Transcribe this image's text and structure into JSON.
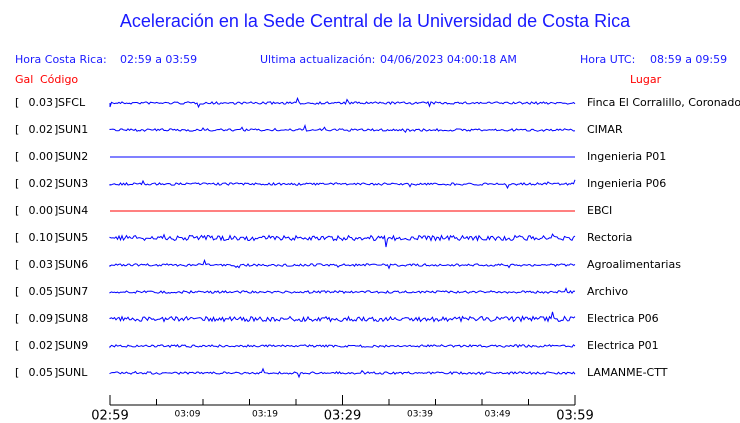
{
  "header": {
    "title": "Aceleración en la Sede Central de la Universidad de Costa Rica",
    "local_label": "Hora Costa Rica:",
    "local_range": "02:59 a 03:59",
    "update_label": "Ultima actualización:",
    "update_time": "04/06/2023 04:00:18 AM",
    "utc_label": "Hora UTC:",
    "utc_range": "08:59 a 09:59",
    "gal_label": "Gal",
    "code_label": "Código",
    "place_label": "Lugar"
  },
  "stations": [
    {
      "gal": "0.03",
      "code": "SFCL",
      "place": "Finca El Corralillo, Coronado",
      "color": "#0000ff"
    },
    {
      "gal": "0.02",
      "code": "SUN1",
      "place": "CIMAR",
      "color": "#0000ff"
    },
    {
      "gal": "0.00",
      "code": "SUN2",
      "place": "Ingenieria P01",
      "color": "#0000ff"
    },
    {
      "gal": "0.02",
      "code": "SUN3",
      "place": "Ingenieria P06",
      "color": "#0000ff"
    },
    {
      "gal": "0.00",
      "code": "SUN4",
      "place": "EBCI",
      "color": "#ff0000"
    },
    {
      "gal": "0.10",
      "code": "SUN5",
      "place": "Rectoria",
      "color": "#0000ff"
    },
    {
      "gal": "0.03",
      "code": "SUN6",
      "place": "Agroalimentarias",
      "color": "#0000ff"
    },
    {
      "gal": "0.05",
      "code": "SUN7",
      "place": "Archivo",
      "color": "#0000ff"
    },
    {
      "gal": "0.09",
      "code": "SUN8",
      "place": "Electrica P06",
      "color": "#0000ff"
    },
    {
      "gal": "0.02",
      "code": "SUN9",
      "place": "Electrica P01",
      "color": "#0000ff"
    },
    {
      "gal": "0.05",
      "code": "SUNL",
      "place": "LAMANME-CTT",
      "color": "#0000ff"
    }
  ],
  "time_axis": {
    "labels": [
      "02:59",
      "03:09",
      "03:19",
      "03:29",
      "03:39",
      "03:49",
      "03:59"
    ]
  }
}
